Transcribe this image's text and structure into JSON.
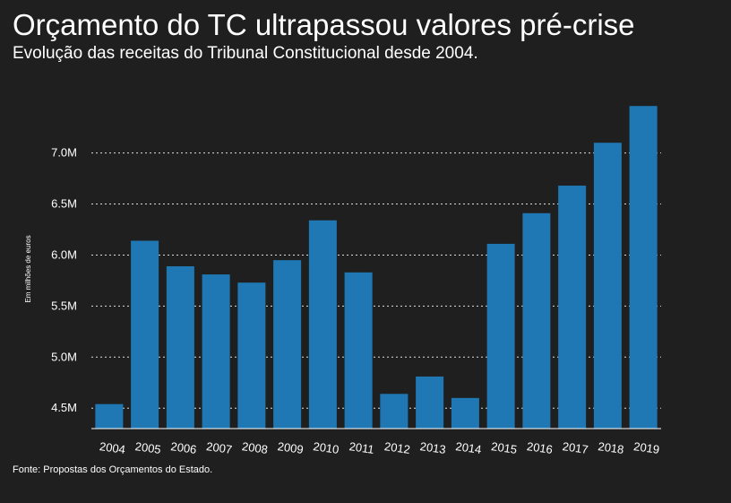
{
  "header": {
    "title": "Orçamento do TC ultrapassou valores pré-crise",
    "subtitle": "Evolução das receitas do Tribunal Constitucional desde 2004."
  },
  "footer": {
    "source": "Fonte: Propostas dos Orçamentos do Estado."
  },
  "colors": {
    "background": "#1f1f1f",
    "bar": "#1f77b4",
    "text": "#ffffff",
    "grid": "#ffffff"
  },
  "chart_data": {
    "type": "bar",
    "title": "Orçamento do TC ultrapassou valores pré-crise",
    "subtitle": "Evolução das receitas do Tribunal Constitucional desde 2004.",
    "xlabel": "",
    "ylabel": "Em milhões de euros",
    "ylim": [
      4.3,
      7.62
    ],
    "yticks": [
      4.5,
      5.0,
      5.5,
      6.0,
      6.5,
      7.0
    ],
    "ytick_labels": [
      "4.5M",
      "5.0M",
      "5.5M",
      "6.0M",
      "6.5M",
      "7.0M"
    ],
    "grid": "horizontal dotted",
    "categories": [
      "2004",
      "2005",
      "2006",
      "2007",
      "2008",
      "2009",
      "2010",
      "2011",
      "2012",
      "2013",
      "2014",
      "2015",
      "2016",
      "2017",
      "2018",
      "2019"
    ],
    "values": [
      4.54,
      6.14,
      5.89,
      5.81,
      5.73,
      5.95,
      6.34,
      5.83,
      4.64,
      4.81,
      4.6,
      6.11,
      6.41,
      6.68,
      7.1,
      7.46
    ]
  }
}
